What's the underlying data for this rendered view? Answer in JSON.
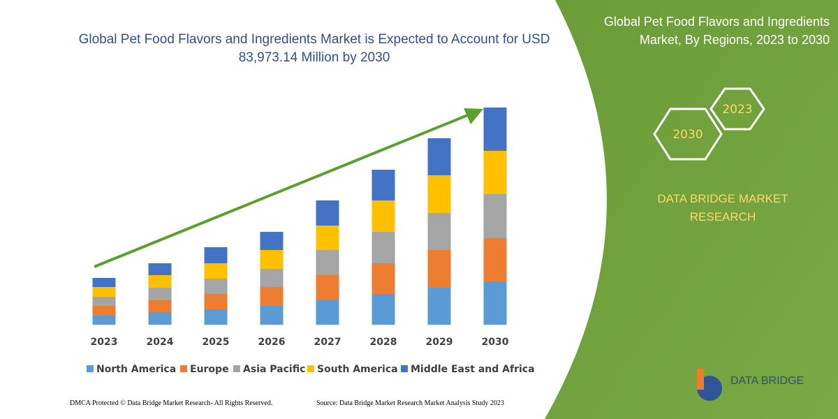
{
  "chart_data": {
    "type": "stacked-bar",
    "title": "Global Pet Food Flavors and Ingredients Market is Expected to Account for USD 83,973.14 Million by 2030",
    "categories": [
      "2023",
      "2024",
      "2025",
      "2026",
      "2027",
      "2028",
      "2029",
      "2030"
    ],
    "series": [
      {
        "name": "North America",
        "color": "#5b9bd5",
        "values": [
          13,
          18,
          22,
          27,
          35,
          44,
          53,
          62
        ]
      },
      {
        "name": "Europe",
        "color": "#ed7d31",
        "values": [
          14,
          17,
          22,
          27,
          36,
          44,
          54,
          62
        ]
      },
      {
        "name": "Asia Pacific",
        "color": "#a5a5a5",
        "values": [
          13,
          18,
          22,
          26,
          36,
          45,
          53,
          63
        ]
      },
      {
        "name": "South America",
        "color": "#ffc000",
        "values": [
          14,
          18,
          22,
          27,
          35,
          45,
          54,
          62
        ]
      },
      {
        "name": "Middle East and Africa",
        "color": "#4472c4",
        "values": [
          13,
          17,
          23,
          26,
          36,
          44,
          53,
          62
        ]
      }
    ]
  },
  "panel": {
    "title": "Global Pet Food Flavors and Ingredients Market, By Regions, 2023 to 2030",
    "hexagons": [
      "2023",
      "2030"
    ],
    "brand": "DATA BRIDGE MARKET RESEARCH",
    "logo": "DATA BRIDGE"
  },
  "footer": {
    "left": "DMCA Protected © Data Bridge Market Research-  All Rights Reserved.",
    "right": "Source: Data Bridge Market Research  Market Analysis Study 2023"
  }
}
